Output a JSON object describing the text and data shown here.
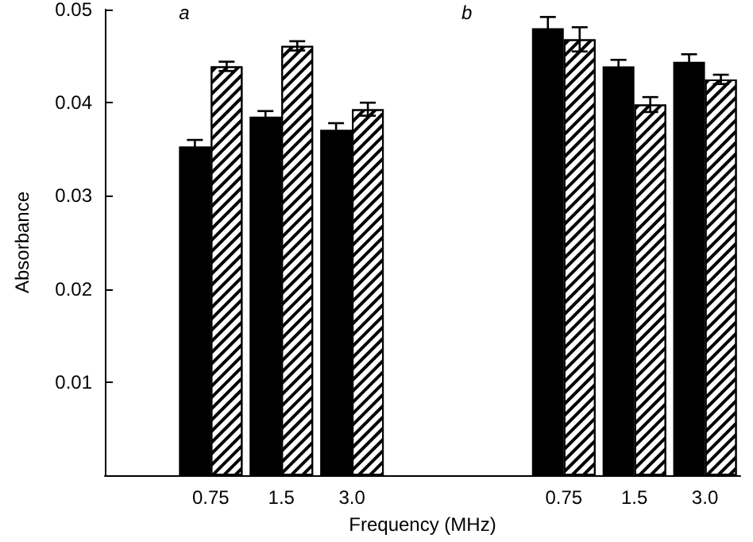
{
  "chart_data": {
    "type": "bar",
    "xlabel": "Frequency (MHz)",
    "ylabel": "Absorbance",
    "categories": [
      null,
      "0.75",
      "1.5",
      "3.0",
      null,
      null,
      "0.75",
      "1.5",
      "3.0"
    ],
    "series": [
      {
        "color": "#000000",
        "values": [
          null,
          0.0353,
          0.0385,
          0.0371,
          null,
          null,
          0.048,
          0.0439,
          0.0444
        ],
        "errors": [
          null,
          0.0007,
          0.0006,
          0.0007,
          null,
          null,
          0.0012,
          0.0007,
          0.0008
        ]
      },
      {
        "color": "#ffffff",
        "values": [
          null,
          0.0439,
          0.0461,
          0.0393,
          null,
          null,
          0.0468,
          0.0398,
          0.0425
        ],
        "errors": [
          null,
          0.0005,
          0.0005,
          0.0007,
          null,
          null,
          0.0013,
          0.0008,
          0.0005
        ]
      }
    ],
    "annotations": [
      "a",
      "b"
    ],
    "ylim": [
      0,
      0.05
    ],
    "yticks": [
      0.01,
      0.02,
      0.03,
      0.04,
      0.05
    ],
    "grid": false
  }
}
